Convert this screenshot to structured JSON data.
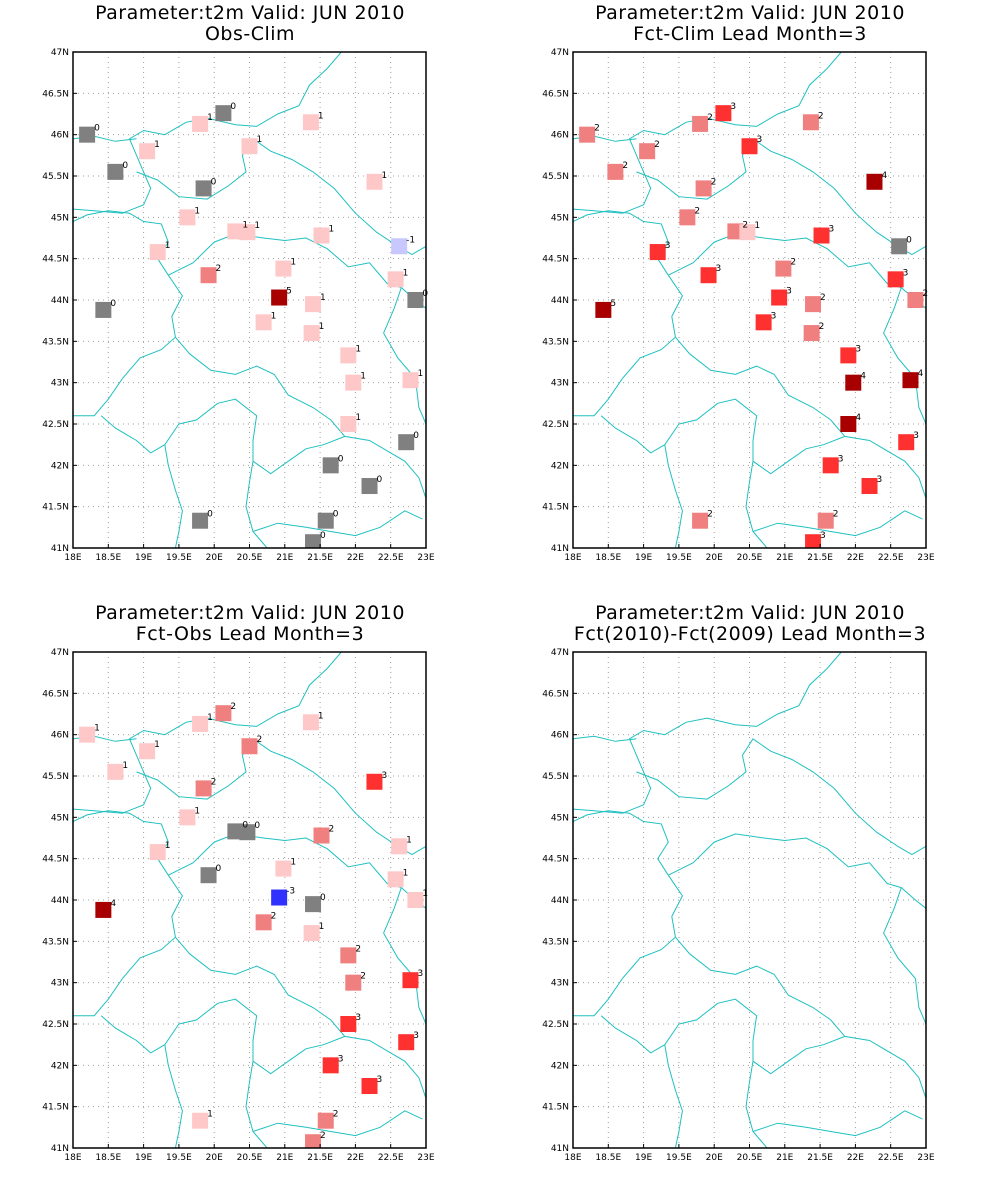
{
  "axes": {
    "lon_min": 18,
    "lon_max": 23,
    "lat_min": 41,
    "lat_max": 47,
    "x_ticks": [
      "18E",
      "18.5E",
      "19E",
      "19.5E",
      "20E",
      "20.5E",
      "21E",
      "21.5E",
      "22E",
      "22.5E",
      "23E"
    ],
    "y_ticks": [
      "41N",
      "41.5N",
      "42N",
      "42.5N",
      "43N",
      "43.5N",
      "44N",
      "44.5N",
      "45N",
      "45.5N",
      "46N",
      "46.5N",
      "47N"
    ],
    "grid": true
  },
  "colors": {
    "-3": "#3030ff",
    "-2": "#8080ff",
    "-1": "#c8c8ff",
    "0": "#808080",
    "1": "#ffc8c8",
    "2": "#f08080",
    "3": "#ff3030",
    "4": "#a80000",
    "5": "#a80000",
    "coast": "#20c0c0"
  },
  "panels": [
    {
      "title1": "Parameter:t2m Valid: JUN 2010",
      "title2": "Obs-Clim",
      "points": [
        {
          "lon": 18.2,
          "lat": 46.0,
          "v": "0"
        },
        {
          "lon": 18.6,
          "lat": 45.55,
          "v": "0"
        },
        {
          "lon": 19.05,
          "lat": 45.8,
          "v": "1"
        },
        {
          "lon": 19.8,
          "lat": 46.13,
          "v": "1"
        },
        {
          "lon": 20.13,
          "lat": 46.26,
          "v": "0"
        },
        {
          "lon": 19.85,
          "lat": 45.35,
          "v": "0"
        },
        {
          "lon": 20.5,
          "lat": 45.86,
          "v": "1"
        },
        {
          "lon": 21.37,
          "lat": 46.15,
          "v": "1"
        },
        {
          "lon": 22.27,
          "lat": 45.43,
          "v": "1"
        },
        {
          "lon": 19.62,
          "lat": 45.0,
          "v": "1"
        },
        {
          "lon": 20.3,
          "lat": 44.83,
          "v": "1"
        },
        {
          "lon": 20.47,
          "lat": 44.82,
          "v": "1"
        },
        {
          "lon": 21.52,
          "lat": 44.78,
          "v": "1"
        },
        {
          "lon": 22.62,
          "lat": 44.65,
          "v": "-1"
        },
        {
          "lon": 19.2,
          "lat": 44.58,
          "v": "1"
        },
        {
          "lon": 19.92,
          "lat": 44.3,
          "v": "2"
        },
        {
          "lon": 20.98,
          "lat": 44.38,
          "v": "1"
        },
        {
          "lon": 22.57,
          "lat": 44.25,
          "v": "1"
        },
        {
          "lon": 22.85,
          "lat": 44.0,
          "v": "0"
        },
        {
          "lon": 18.43,
          "lat": 43.88,
          "v": "0"
        },
        {
          "lon": 20.92,
          "lat": 44.03,
          "v": "5"
        },
        {
          "lon": 21.4,
          "lat": 43.95,
          "v": "1"
        },
        {
          "lon": 20.7,
          "lat": 43.73,
          "v": "1"
        },
        {
          "lon": 21.38,
          "lat": 43.6,
          "v": "1"
        },
        {
          "lon": 21.9,
          "lat": 43.33,
          "v": "1"
        },
        {
          "lon": 21.97,
          "lat": 43.0,
          "v": "1"
        },
        {
          "lon": 22.78,
          "lat": 43.03,
          "v": "1"
        },
        {
          "lon": 21.9,
          "lat": 42.5,
          "v": "1"
        },
        {
          "lon": 22.72,
          "lat": 42.28,
          "v": "0"
        },
        {
          "lon": 21.65,
          "lat": 42.0,
          "v": "0"
        },
        {
          "lon": 22.2,
          "lat": 41.75,
          "v": "0"
        },
        {
          "lon": 19.8,
          "lat": 41.33,
          "v": "0"
        },
        {
          "lon": 21.58,
          "lat": 41.33,
          "v": "0"
        },
        {
          "lon": 21.4,
          "lat": 41.07,
          "v": "0"
        }
      ]
    },
    {
      "title1": "Parameter:t2m Valid: JUN 2010",
      "title2": "Fct-Clim Lead Month=3",
      "points": [
        {
          "lon": 18.2,
          "lat": 46.0,
          "v": "2"
        },
        {
          "lon": 18.6,
          "lat": 45.55,
          "v": "2"
        },
        {
          "lon": 19.05,
          "lat": 45.8,
          "v": "2"
        },
        {
          "lon": 19.8,
          "lat": 46.13,
          "v": "2"
        },
        {
          "lon": 20.13,
          "lat": 46.26,
          "v": "3"
        },
        {
          "lon": 19.85,
          "lat": 45.35,
          "v": "2"
        },
        {
          "lon": 20.5,
          "lat": 45.86,
          "v": "3"
        },
        {
          "lon": 21.37,
          "lat": 46.15,
          "v": "2"
        },
        {
          "lon": 22.27,
          "lat": 45.43,
          "v": "4"
        },
        {
          "lon": 19.62,
          "lat": 45.0,
          "v": "2"
        },
        {
          "lon": 20.3,
          "lat": 44.83,
          "v": "2"
        },
        {
          "lon": 20.47,
          "lat": 44.82,
          "v": "1"
        },
        {
          "lon": 21.52,
          "lat": 44.78,
          "v": "3"
        },
        {
          "lon": 22.62,
          "lat": 44.65,
          "v": "0"
        },
        {
          "lon": 19.2,
          "lat": 44.58,
          "v": "3"
        },
        {
          "lon": 19.92,
          "lat": 44.3,
          "v": "3"
        },
        {
          "lon": 20.98,
          "lat": 44.38,
          "v": "2"
        },
        {
          "lon": 22.57,
          "lat": 44.25,
          "v": "3"
        },
        {
          "lon": 22.85,
          "lat": 44.0,
          "v": "2"
        },
        {
          "lon": 18.43,
          "lat": 43.88,
          "v": "5"
        },
        {
          "lon": 20.92,
          "lat": 44.03,
          "v": "3"
        },
        {
          "lon": 21.4,
          "lat": 43.95,
          "v": "2"
        },
        {
          "lon": 20.7,
          "lat": 43.73,
          "v": "3"
        },
        {
          "lon": 21.38,
          "lat": 43.6,
          "v": "2"
        },
        {
          "lon": 21.9,
          "lat": 43.33,
          "v": "3"
        },
        {
          "lon": 21.97,
          "lat": 43.0,
          "v": "4"
        },
        {
          "lon": 22.78,
          "lat": 43.03,
          "v": "4"
        },
        {
          "lon": 21.9,
          "lat": 42.5,
          "v": "4"
        },
        {
          "lon": 22.72,
          "lat": 42.28,
          "v": "3"
        },
        {
          "lon": 21.65,
          "lat": 42.0,
          "v": "3"
        },
        {
          "lon": 22.2,
          "lat": 41.75,
          "v": "3"
        },
        {
          "lon": 19.8,
          "lat": 41.33,
          "v": "2"
        },
        {
          "lon": 21.58,
          "lat": 41.33,
          "v": "2"
        },
        {
          "lon": 21.4,
          "lat": 41.07,
          "v": "3"
        }
      ]
    },
    {
      "title1": "Parameter:t2m Valid: JUN 2010",
      "title2": "Fct-Obs Lead Month=3",
      "points": [
        {
          "lon": 18.2,
          "lat": 46.0,
          "v": "1"
        },
        {
          "lon": 18.6,
          "lat": 45.55,
          "v": "1"
        },
        {
          "lon": 19.05,
          "lat": 45.8,
          "v": "1"
        },
        {
          "lon": 19.8,
          "lat": 46.13,
          "v": "1"
        },
        {
          "lon": 20.13,
          "lat": 46.26,
          "v": "2"
        },
        {
          "lon": 19.85,
          "lat": 45.35,
          "v": "2"
        },
        {
          "lon": 20.5,
          "lat": 45.86,
          "v": "2"
        },
        {
          "lon": 21.37,
          "lat": 46.15,
          "v": "1"
        },
        {
          "lon": 22.27,
          "lat": 45.43,
          "v": "3"
        },
        {
          "lon": 19.62,
          "lat": 45.0,
          "v": "1"
        },
        {
          "lon": 20.3,
          "lat": 44.83,
          "v": "0"
        },
        {
          "lon": 20.47,
          "lat": 44.82,
          "v": "0"
        },
        {
          "lon": 21.52,
          "lat": 44.78,
          "v": "2"
        },
        {
          "lon": 22.62,
          "lat": 44.65,
          "v": "1"
        },
        {
          "lon": 19.2,
          "lat": 44.58,
          "v": "1"
        },
        {
          "lon": 19.92,
          "lat": 44.3,
          "v": "0"
        },
        {
          "lon": 20.98,
          "lat": 44.38,
          "v": "1"
        },
        {
          "lon": 22.57,
          "lat": 44.25,
          "v": "1"
        },
        {
          "lon": 22.85,
          "lat": 44.0,
          "v": "1"
        },
        {
          "lon": 18.43,
          "lat": 43.88,
          "v": "4"
        },
        {
          "lon": 20.92,
          "lat": 44.03,
          "v": "-3"
        },
        {
          "lon": 21.4,
          "lat": 43.95,
          "v": "0"
        },
        {
          "lon": 20.7,
          "lat": 43.73,
          "v": "2"
        },
        {
          "lon": 21.38,
          "lat": 43.6,
          "v": "1"
        },
        {
          "lon": 21.9,
          "lat": 43.33,
          "v": "2"
        },
        {
          "lon": 21.97,
          "lat": 43.0,
          "v": "2"
        },
        {
          "lon": 22.78,
          "lat": 43.03,
          "v": "3"
        },
        {
          "lon": 21.9,
          "lat": 42.5,
          "v": "3"
        },
        {
          "lon": 22.72,
          "lat": 42.28,
          "v": "3"
        },
        {
          "lon": 21.65,
          "lat": 42.0,
          "v": "3"
        },
        {
          "lon": 22.2,
          "lat": 41.75,
          "v": "3"
        },
        {
          "lon": 19.8,
          "lat": 41.33,
          "v": "1"
        },
        {
          "lon": 21.58,
          "lat": 41.33,
          "v": "2"
        },
        {
          "lon": 21.4,
          "lat": 41.07,
          "v": "2"
        }
      ]
    },
    {
      "title1": "Parameter:t2m Valid: JUN 2010",
      "title2": "Fct(2010)-Fct(2009) Lead Month=3",
      "points": []
    }
  ]
}
